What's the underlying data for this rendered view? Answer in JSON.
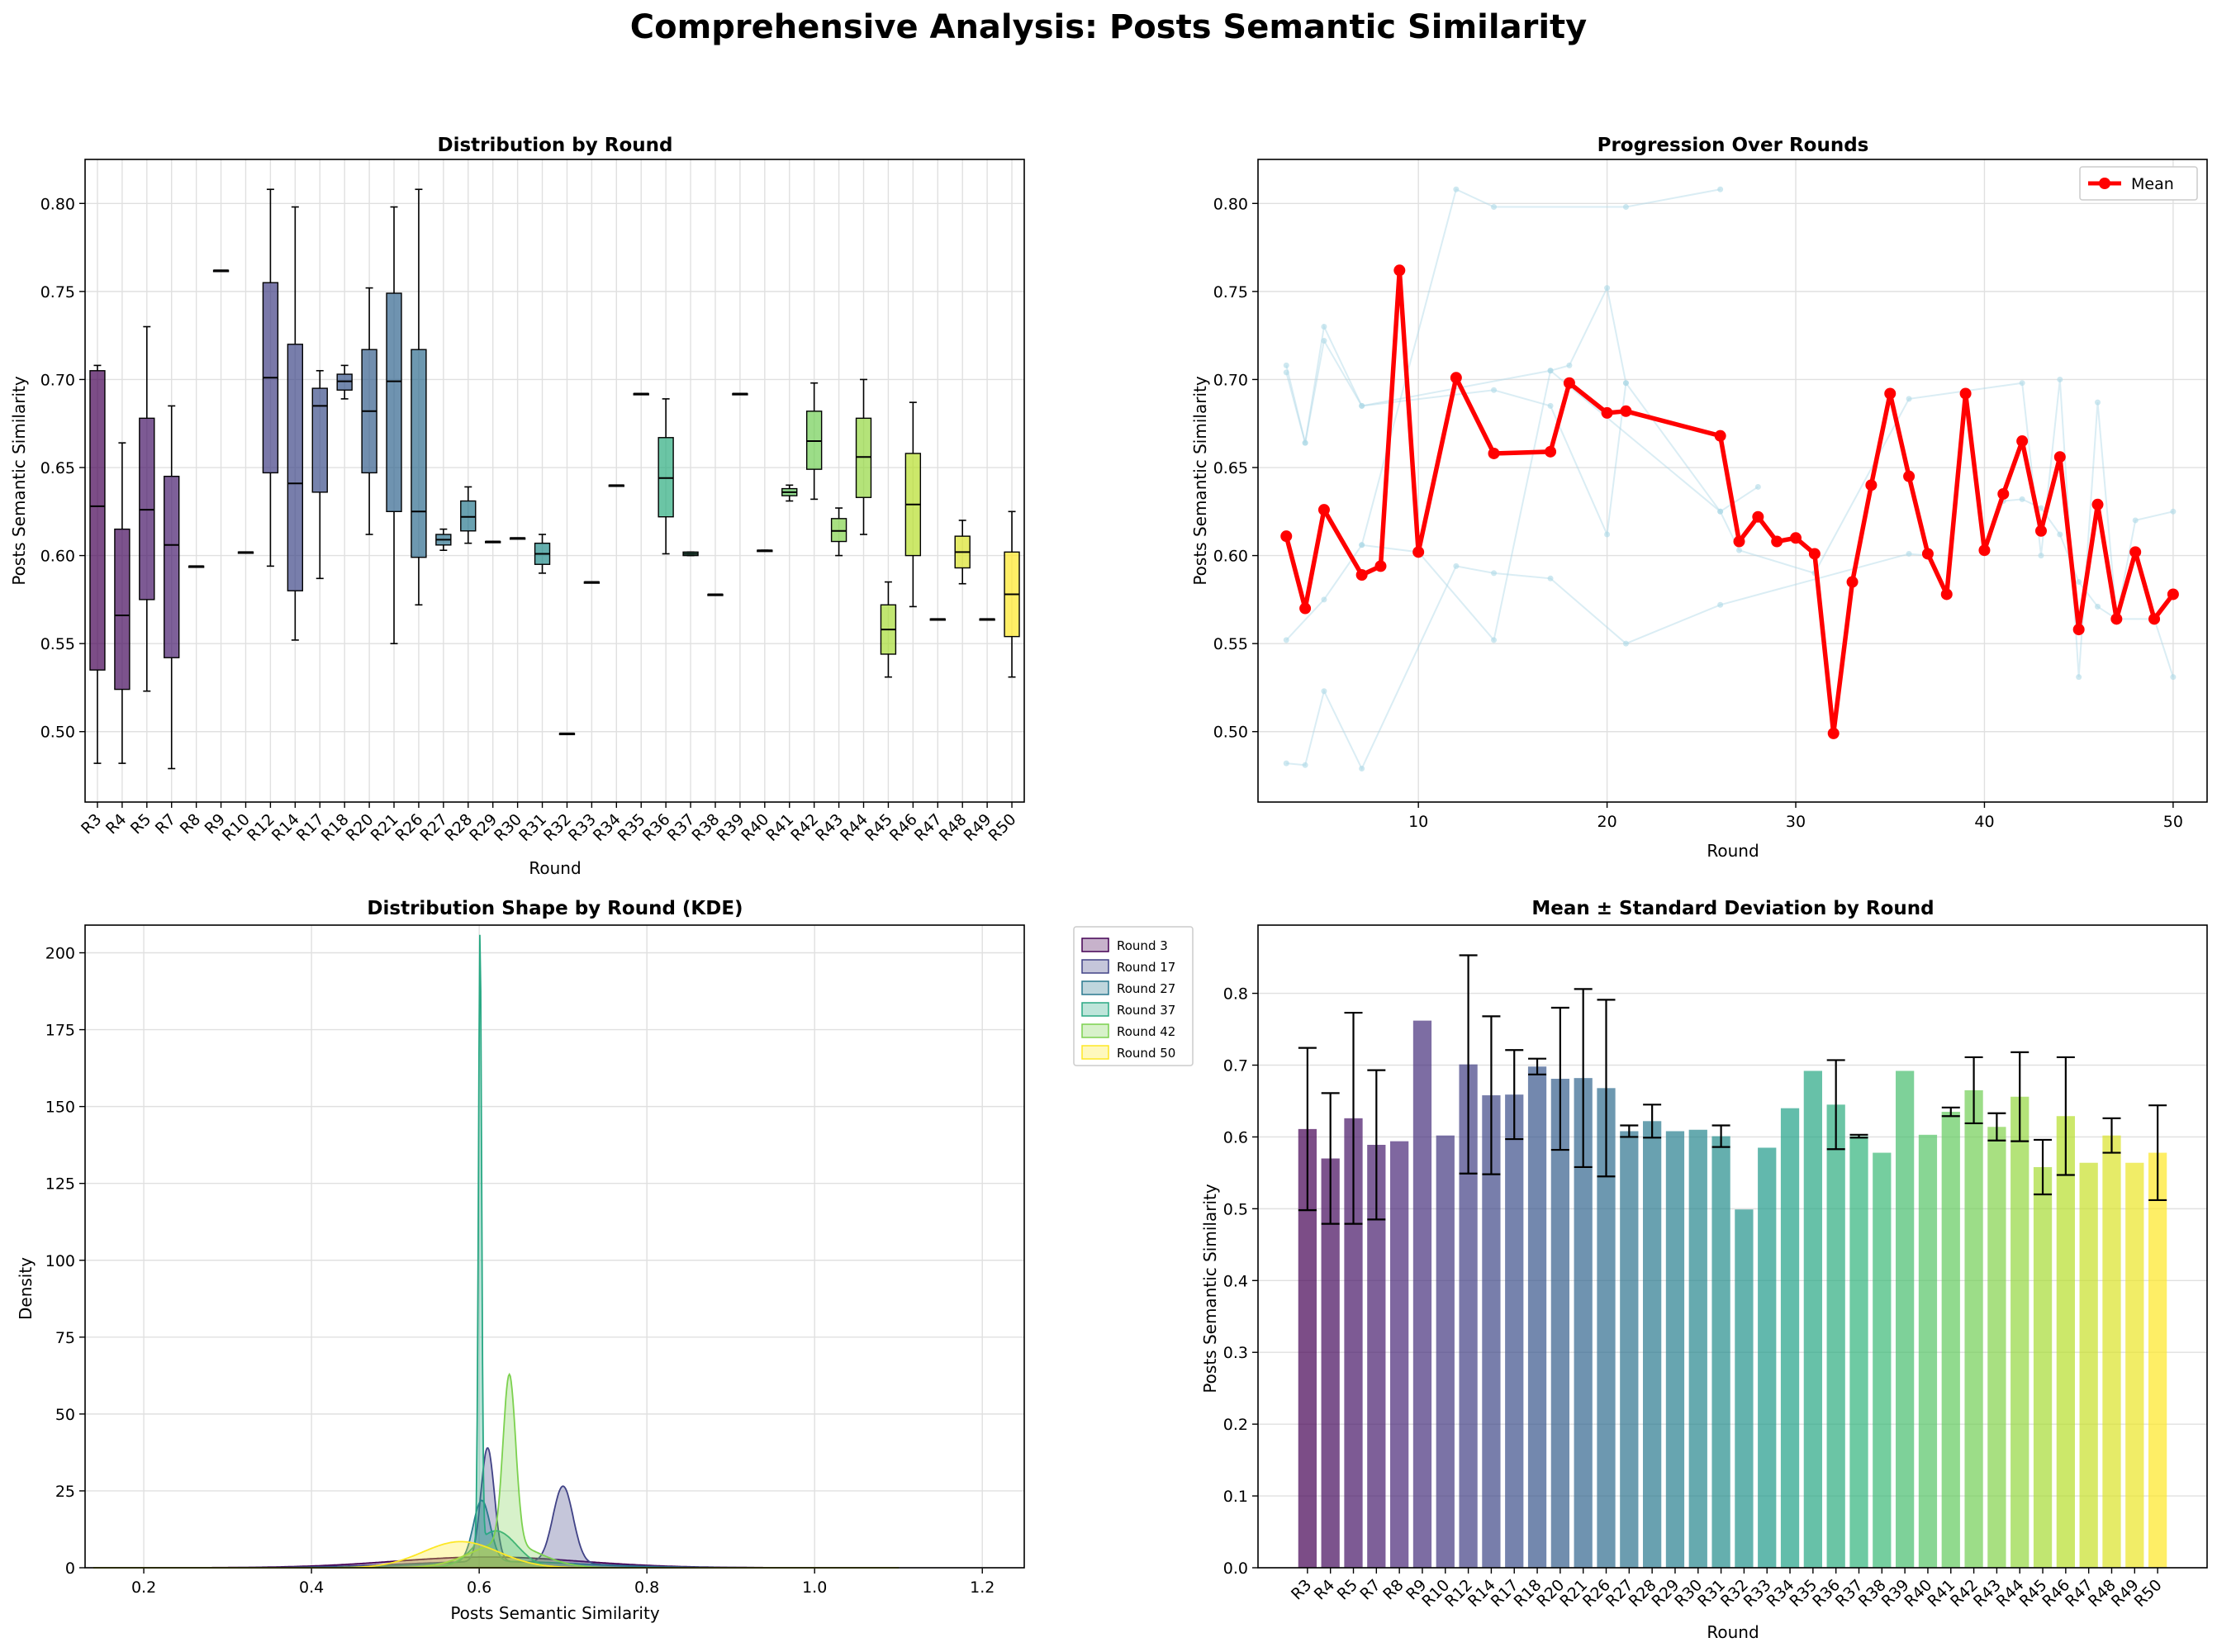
{
  "suptitle": "Comprehensive Analysis: Posts Semantic Similarity",
  "colors": {
    "viridis": [
      "#440154",
      "#482878",
      "#3e4989",
      "#31688e",
      "#26828e",
      "#1f9e89",
      "#35b779",
      "#6ece58",
      "#b5de2b",
      "#fde725"
    ],
    "mean_line": "#ff0000",
    "indiv_line": "#add8e6",
    "grid": "#e0e0e0"
  },
  "chart_data": [
    {
      "type": "box",
      "title": "Distribution by Round",
      "xlabel": "Round",
      "ylabel": "Posts Semantic Similarity",
      "ylim": [
        0.46,
        0.825
      ],
      "yticks": [
        0.5,
        0.55,
        0.6,
        0.65,
        0.7,
        0.75,
        0.8
      ],
      "grid": true,
      "categories": [
        "R3",
        "R4",
        "R5",
        "R7",
        "R8",
        "R9",
        "R10",
        "R12",
        "R14",
        "R17",
        "R18",
        "R20",
        "R21",
        "R26",
        "R27",
        "R28",
        "R29",
        "R30",
        "R31",
        "R32",
        "R33",
        "R34",
        "R35",
        "R36",
        "R37",
        "R38",
        "R39",
        "R40",
        "R41",
        "R42",
        "R43",
        "R44",
        "R45",
        "R46",
        "R47",
        "R48",
        "R49",
        "R50"
      ],
      "boxes": [
        {
          "whislo": 0.482,
          "q1": 0.535,
          "med": 0.628,
          "q3": 0.705,
          "whishi": 0.708
        },
        {
          "whislo": 0.482,
          "q1": 0.524,
          "med": 0.566,
          "q3": 0.615,
          "whishi": 0.664
        },
        {
          "whislo": 0.523,
          "q1": 0.575,
          "med": 0.626,
          "q3": 0.678,
          "whishi": 0.73
        },
        {
          "whislo": 0.479,
          "q1": 0.542,
          "med": 0.606,
          "q3": 0.645,
          "whishi": 0.685
        },
        {
          "whislo": 0.594,
          "q1": 0.594,
          "med": 0.594,
          "q3": 0.594,
          "whishi": 0.594
        },
        {
          "whislo": 0.762,
          "q1": 0.762,
          "med": 0.762,
          "q3": 0.762,
          "whishi": 0.762
        },
        {
          "whislo": 0.602,
          "q1": 0.602,
          "med": 0.602,
          "q3": 0.602,
          "whishi": 0.602
        },
        {
          "whislo": 0.594,
          "q1": 0.647,
          "med": 0.701,
          "q3": 0.755,
          "whishi": 0.808
        },
        {
          "whislo": 0.552,
          "q1": 0.58,
          "med": 0.641,
          "q3": 0.72,
          "whishi": 0.798
        },
        {
          "whislo": 0.587,
          "q1": 0.636,
          "med": 0.685,
          "q3": 0.695,
          "whishi": 0.705
        },
        {
          "whislo": 0.689,
          "q1": 0.694,
          "med": 0.699,
          "q3": 0.703,
          "whishi": 0.708
        },
        {
          "whislo": 0.612,
          "q1": 0.647,
          "med": 0.682,
          "q3": 0.717,
          "whishi": 0.752
        },
        {
          "whislo": 0.55,
          "q1": 0.625,
          "med": 0.699,
          "q3": 0.749,
          "whishi": 0.798
        },
        {
          "whislo": 0.572,
          "q1": 0.599,
          "med": 0.625,
          "q3": 0.717,
          "whishi": 0.808
        },
        {
          "whislo": 0.603,
          "q1": 0.606,
          "med": 0.609,
          "q3": 0.612,
          "whishi": 0.615
        },
        {
          "whislo": 0.607,
          "q1": 0.614,
          "med": 0.622,
          "q3": 0.631,
          "whishi": 0.639
        },
        {
          "whislo": 0.608,
          "q1": 0.608,
          "med": 0.608,
          "q3": 0.608,
          "whishi": 0.608
        },
        {
          "whislo": 0.61,
          "q1": 0.61,
          "med": 0.61,
          "q3": 0.61,
          "whishi": 0.61
        },
        {
          "whislo": 0.59,
          "q1": 0.595,
          "med": 0.601,
          "q3": 0.607,
          "whishi": 0.612
        },
        {
          "whislo": 0.499,
          "q1": 0.499,
          "med": 0.499,
          "q3": 0.499,
          "whishi": 0.499
        },
        {
          "whislo": 0.585,
          "q1": 0.585,
          "med": 0.585,
          "q3": 0.585,
          "whishi": 0.585
        },
        {
          "whislo": 0.64,
          "q1": 0.64,
          "med": 0.64,
          "q3": 0.64,
          "whishi": 0.64
        },
        {
          "whislo": 0.692,
          "q1": 0.692,
          "med": 0.692,
          "q3": 0.692,
          "whishi": 0.692
        },
        {
          "whislo": 0.601,
          "q1": 0.622,
          "med": 0.644,
          "q3": 0.667,
          "whishi": 0.689
        },
        {
          "whislo": 0.6,
          "q1": 0.6,
          "med": 0.601,
          "q3": 0.602,
          "whishi": 0.602
        },
        {
          "whislo": 0.578,
          "q1": 0.578,
          "med": 0.578,
          "q3": 0.578,
          "whishi": 0.578
        },
        {
          "whislo": 0.692,
          "q1": 0.692,
          "med": 0.692,
          "q3": 0.692,
          "whishi": 0.692
        },
        {
          "whislo": 0.603,
          "q1": 0.603,
          "med": 0.603,
          "q3": 0.603,
          "whishi": 0.603
        },
        {
          "whislo": 0.631,
          "q1": 0.634,
          "med": 0.636,
          "q3": 0.638,
          "whishi": 0.64
        },
        {
          "whislo": 0.632,
          "q1": 0.649,
          "med": 0.665,
          "q3": 0.682,
          "whishi": 0.698
        },
        {
          "whislo": 0.6,
          "q1": 0.608,
          "med": 0.614,
          "q3": 0.621,
          "whishi": 0.627
        },
        {
          "whislo": 0.612,
          "q1": 0.633,
          "med": 0.656,
          "q3": 0.678,
          "whishi": 0.7
        },
        {
          "whislo": 0.531,
          "q1": 0.544,
          "med": 0.558,
          "q3": 0.572,
          "whishi": 0.585
        },
        {
          "whislo": 0.571,
          "q1": 0.6,
          "med": 0.629,
          "q3": 0.658,
          "whishi": 0.687
        },
        {
          "whislo": 0.564,
          "q1": 0.564,
          "med": 0.564,
          "q3": 0.564,
          "whishi": 0.564
        },
        {
          "whislo": 0.584,
          "q1": 0.593,
          "med": 0.602,
          "q3": 0.611,
          "whishi": 0.62
        },
        {
          "whislo": 0.564,
          "q1": 0.564,
          "med": 0.564,
          "q3": 0.564,
          "whishi": 0.564
        },
        {
          "whislo": 0.531,
          "q1": 0.554,
          "med": 0.578,
          "q3": 0.602,
          "whishi": 0.625
        }
      ]
    },
    {
      "type": "line",
      "title": "Progression Over Rounds",
      "xlabel": "Round",
      "ylabel": "Posts Semantic Similarity",
      "xlim": [
        1.5,
        51.8
      ],
      "ylim": [
        0.46,
        0.825
      ],
      "xticks": [
        10,
        20,
        30,
        40,
        50
      ],
      "yticks": [
        0.5,
        0.55,
        0.6,
        0.65,
        0.7,
        0.75,
        0.8
      ],
      "legend": "top-right",
      "series": [
        {
          "name": "Mean",
          "x": [
            3,
            4,
            5,
            7,
            8,
            9,
            10,
            12,
            14,
            17,
            18,
            20,
            21,
            26,
            27,
            28,
            29,
            30,
            31,
            32,
            33,
            34,
            35,
            36,
            37,
            38,
            39,
            40,
            41,
            42,
            43,
            44,
            45,
            46,
            47,
            48,
            49,
            50
          ],
          "y": [
            0.611,
            0.57,
            0.626,
            0.589,
            0.594,
            0.762,
            0.602,
            0.701,
            0.658,
            0.659,
            0.698,
            0.681,
            0.682,
            0.668,
            0.608,
            0.622,
            0.608,
            0.61,
            0.601,
            0.499,
            0.585,
            0.64,
            0.692,
            0.645,
            0.601,
            0.578,
            0.692,
            0.603,
            0.635,
            0.665,
            0.614,
            0.656,
            0.558,
            0.629,
            0.564,
            0.602,
            0.564,
            0.578
          ]
        }
      ],
      "background_series": [
        {
          "x": [
            3,
            4,
            5,
            7,
            17,
            18,
            20,
            21,
            26,
            28
          ],
          "y": [
            0.708,
            0.664,
            0.73,
            0.685,
            0.705,
            0.708,
            0.752,
            0.698,
            0.625,
            0.639
          ]
        },
        {
          "x": [
            3,
            4,
            5,
            7,
            14,
            17,
            20,
            21
          ],
          "y": [
            0.704,
            0.664,
            0.722,
            0.685,
            0.694,
            0.685,
            0.612,
            0.698
          ]
        },
        {
          "x": [
            3,
            5,
            7,
            12,
            14,
            21,
            26
          ],
          "y": [
            0.552,
            0.575,
            0.606,
            0.808,
            0.798,
            0.798,
            0.808
          ]
        },
        {
          "x": [
            3,
            4,
            5,
            7,
            12,
            14,
            17,
            21,
            26,
            36,
            37
          ],
          "y": [
            0.482,
            0.481,
            0.523,
            0.479,
            0.594,
            0.59,
            0.587,
            0.55,
            0.572,
            0.601,
            0.6
          ]
        },
        {
          "x": [
            7,
            10,
            14,
            17,
            26,
            27,
            31,
            36,
            42,
            43,
            44,
            45,
            46,
            47,
            48,
            50
          ],
          "y": [
            0.606,
            0.602,
            0.552,
            0.705,
            0.625,
            0.603,
            0.59,
            0.689,
            0.698,
            0.6,
            0.7,
            0.531,
            0.687,
            0.564,
            0.62,
            0.625
          ]
        },
        {
          "x": [
            40,
            41,
            42,
            43,
            44,
            45,
            46,
            47,
            49,
            50
          ],
          "y": [
            0.603,
            0.631,
            0.632,
            0.627,
            0.612,
            0.585,
            0.571,
            0.564,
            0.564,
            0.531
          ]
        }
      ]
    },
    {
      "type": "area",
      "title": "Distribution Shape by Round (KDE)",
      "xlabel": "Posts Semantic Similarity",
      "ylabel": "Density",
      "xlim": [
        0.13,
        1.25
      ],
      "ylim": [
        0,
        209
      ],
      "xticks": [
        0.2,
        0.4,
        0.6,
        0.8,
        1.0,
        1.2
      ],
      "yticks": [
        0,
        25,
        50,
        75,
        100,
        125,
        150,
        175,
        200
      ],
      "legend": "outside-right",
      "series": [
        {
          "name": "Round 3",
          "peaks": [
            {
              "c": 0.61,
              "w": 0.11,
              "h": 3.5
            }
          ]
        },
        {
          "name": "Round 17",
          "peaks": [
            {
              "c": 0.61,
              "w": 0.008,
              "h": 37
            },
            {
              "c": 0.7,
              "w": 0.012,
              "h": 25
            },
            {
              "c": 0.62,
              "w": 0.11,
              "h": 2
            }
          ]
        },
        {
          "name": "Round 27",
          "peaks": [
            {
              "c": 0.603,
              "w": 0.01,
              "h": 20
            },
            {
              "c": 0.63,
              "w": 0.09,
              "h": 2
            }
          ]
        },
        {
          "name": "Round 37",
          "peaks": [
            {
              "c": 0.601,
              "w": 0.0019,
              "h": 198
            },
            {
              "c": 0.62,
              "w": 0.025,
              "h": 12
            }
          ]
        },
        {
          "name": "Round 42",
          "peaks": [
            {
              "c": 0.636,
              "w": 0.0075,
              "h": 55
            },
            {
              "c": 0.63,
              "w": 0.04,
              "h": 8
            }
          ]
        },
        {
          "name": "Round 50",
          "peaks": [
            {
              "c": 0.578,
              "w": 0.045,
              "h": 8.5
            }
          ]
        }
      ]
    },
    {
      "type": "bar",
      "title": "Mean ± Standard Deviation by Round",
      "xlabel": "Round",
      "ylabel": "Posts Semantic Similarity",
      "ylim": [
        0,
        0.895
      ],
      "yticks": [
        0.0,
        0.1,
        0.2,
        0.3,
        0.4,
        0.5,
        0.6,
        0.7,
        0.8
      ],
      "categories": [
        "R3",
        "R4",
        "R5",
        "R7",
        "R8",
        "R9",
        "R10",
        "R12",
        "R14",
        "R17",
        "R18",
        "R20",
        "R21",
        "R26",
        "R27",
        "R28",
        "R29",
        "R30",
        "R31",
        "R32",
        "R33",
        "R34",
        "R35",
        "R36",
        "R37",
        "R38",
        "R39",
        "R40",
        "R41",
        "R42",
        "R43",
        "R44",
        "R45",
        "R46",
        "R47",
        "R48",
        "R49",
        "R50"
      ],
      "values": [
        0.611,
        0.57,
        0.626,
        0.589,
        0.594,
        0.762,
        0.602,
        0.701,
        0.658,
        0.659,
        0.698,
        0.681,
        0.682,
        0.668,
        0.608,
        0.622,
        0.608,
        0.61,
        0.601,
        0.499,
        0.585,
        0.64,
        0.692,
        0.645,
        0.601,
        0.578,
        0.692,
        0.603,
        0.635,
        0.665,
        0.614,
        0.656,
        0.558,
        0.629,
        0.564,
        0.602,
        0.564,
        0.578
      ],
      "errors": [
        0.113,
        0.091,
        0.147,
        0.104,
        0,
        0,
        0,
        0.152,
        0.11,
        0.062,
        0.011,
        0.099,
        0.124,
        0.123,
        0.008,
        0.023,
        0,
        0,
        0.015,
        0,
        0,
        0,
        0,
        0.062,
        0.002,
        0,
        0,
        0,
        0.006,
        0.046,
        0.019,
        0.062,
        0.038,
        0.082,
        0,
        0.024,
        0,
        0.066
      ]
    }
  ]
}
